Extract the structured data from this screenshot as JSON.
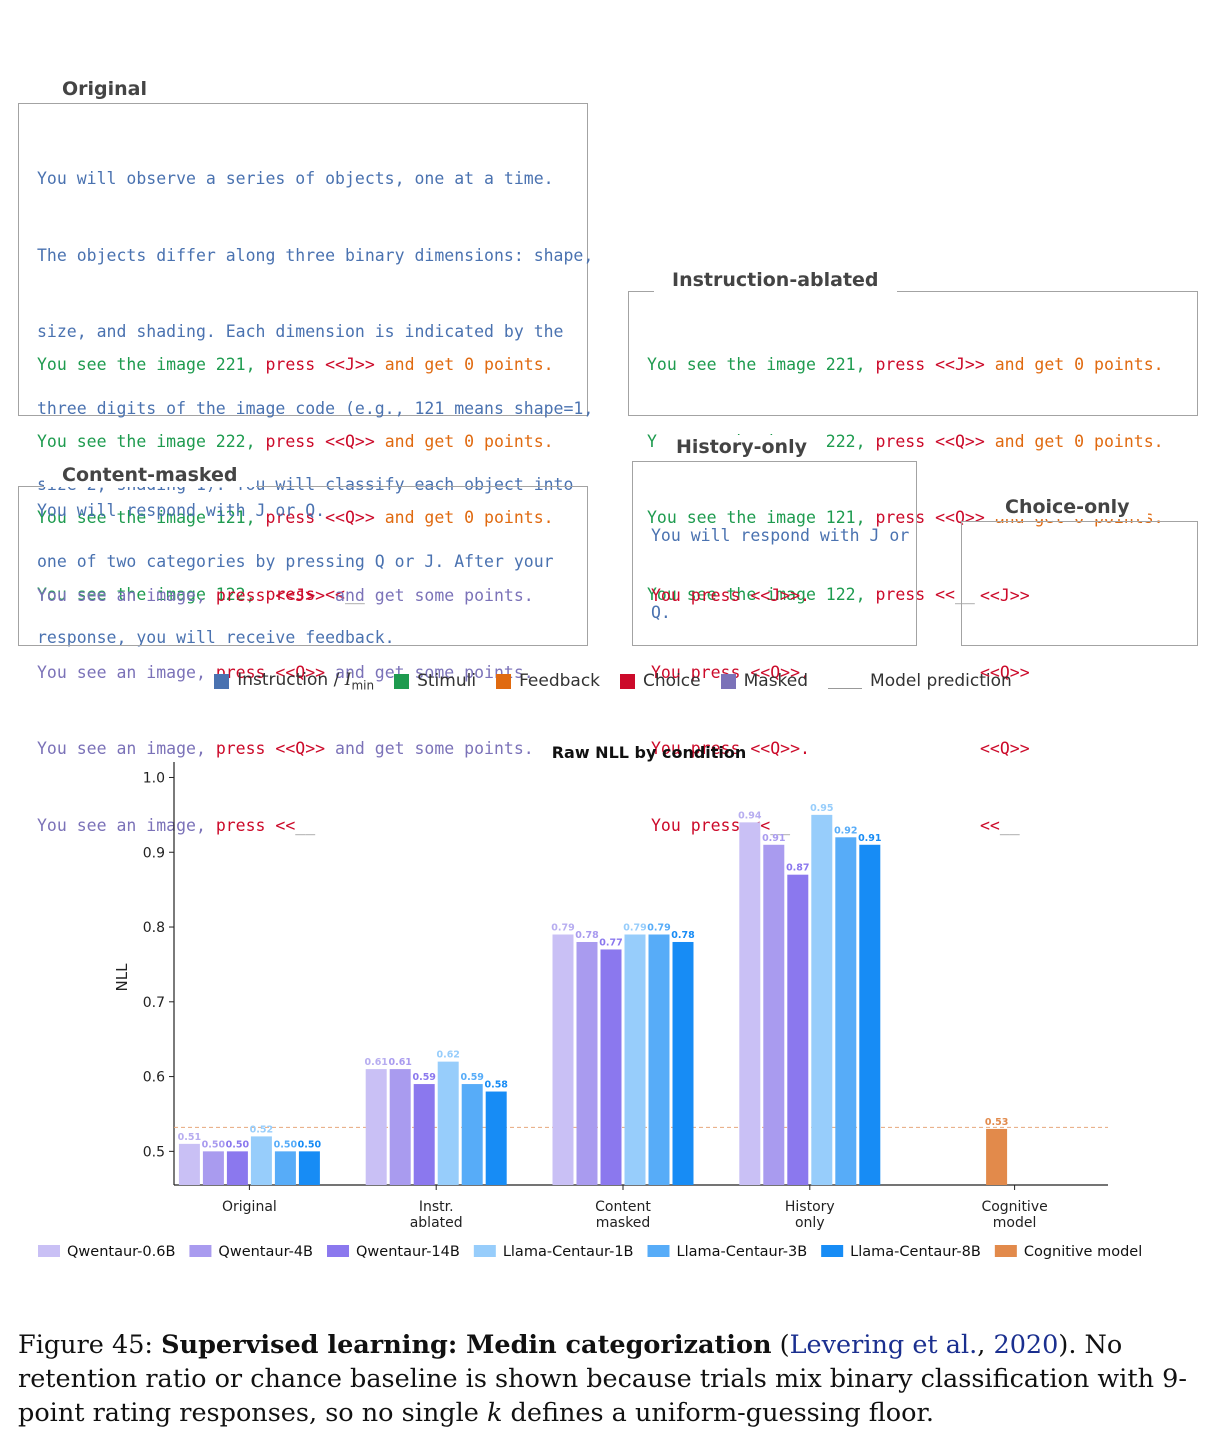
{
  "panels": {
    "original": {
      "title": "Original",
      "instruction": [
        "You will observe a series of objects, one at a time.",
        "The objects differ along three binary dimensions: shape,",
        "size, and shading. Each dimension is indicated by the",
        "three digits of the image code (e.g., 121 means shape=1,",
        "size=2, shading=1). You will classify each object into",
        "one of two categories by pressing Q or J. After your",
        "response, you will receive feedback."
      ],
      "trials": [
        {
          "stim": "You see the image 221, ",
          "choice": "press <<J>>",
          "fb": " and get 0 points."
        },
        {
          "stim": "You see the image 222, ",
          "choice": "press <<Q>>",
          "fb": " and get 0 points."
        },
        {
          "stim": "You see the image 121, ",
          "choice": "press <<Q>>",
          "fb": " and get 0 points."
        },
        {
          "stim": "You see the image 122, ",
          "choice": "press <<",
          "fb": "__"
        }
      ]
    },
    "instruction_ablated": {
      "title": "Instruction-ablated",
      "trials": [
        {
          "stim": "You see the image 221, ",
          "choice": "press <<J>>",
          "fb": " and get 0 points."
        },
        {
          "stim": "You see the image 222, ",
          "choice": "press <<Q>>",
          "fb": " and get 0 points."
        },
        {
          "stim": "You see the image 121, ",
          "choice": "press <<Q>>",
          "fb": " and get 0 points."
        },
        {
          "stim": "You see the image 122, ",
          "choice": "press <<",
          "fb": "__"
        }
      ]
    },
    "content_masked": {
      "title": "Content-masked",
      "instruction": "You will respond with J or Q.",
      "trials": [
        {
          "stim": "You see an image, ",
          "choice": "press <<J>>",
          "fb": " and get some points."
        },
        {
          "stim": "You see an image, ",
          "choice": "press <<Q>>",
          "fb": " and get some points."
        },
        {
          "stim": "You see an image, ",
          "choice": "press <<Q>>",
          "fb": " and get some points."
        },
        {
          "stim": "You see an image, ",
          "choice": "press <<",
          "fb": "__"
        }
      ]
    },
    "history_only": {
      "title": "History-only",
      "instruction": [
        "You will respond with J or",
        "Q."
      ],
      "trials": [
        "You press <<J>>.",
        "You press <<Q>>.",
        "You press <<Q>>.",
        "You press <<"
      ],
      "blank": "__"
    },
    "choice_only": {
      "title": "Choice-only",
      "trials": [
        "<<J>>",
        "<<Q>>",
        "<<Q>>",
        "<<"
      ],
      "blank": "__"
    }
  },
  "token_legend": [
    {
      "label": "Instruction / ",
      "math": "I",
      "sub": "min",
      "color": "#4a72b0"
    },
    {
      "label": "Stimuli",
      "color": "#1e9b4f"
    },
    {
      "label": "Feedback",
      "color": "#e06a10"
    },
    {
      "label": "Choice",
      "color": "#cc0a2a"
    },
    {
      "label": "Masked",
      "color": "#7b72b8"
    },
    {
      "label": "Model prediction",
      "color": "none"
    }
  ],
  "chart_data": {
    "type": "bar",
    "title": "Raw NLL by condition",
    "ylabel": "NLL",
    "ylim": [
      0.455,
      1.01
    ],
    "yticks": [
      "0.5",
      "0.6",
      "0.7",
      "0.8",
      "0.9",
      "1.0"
    ],
    "categories": [
      "Original",
      "Instr.\nablated",
      "Content\nmasked",
      "History\nonly",
      "Cognitive\nmodel"
    ],
    "series": [
      {
        "name": "Qwentaur-0.6B",
        "color": "#c9c0f5",
        "values": [
          0.51,
          0.61,
          0.79,
          0.94,
          null
        ],
        "labels": [
          "0.51",
          "0.61",
          "0.79",
          "0.94",
          ""
        ]
      },
      {
        "name": "Qwentaur-4B",
        "color": "#a99bef",
        "values": [
          0.5,
          0.61,
          0.78,
          0.91,
          null
        ],
        "labels": [
          "0.50",
          "0.61",
          "0.78",
          "0.91",
          ""
        ]
      },
      {
        "name": "Qwentaur-14B",
        "color": "#8b78ee",
        "values": [
          0.5,
          0.59,
          0.77,
          0.87,
          null
        ],
        "labels": [
          "0.50",
          "0.59",
          "0.77",
          "0.87",
          ""
        ]
      },
      {
        "name": "Llama-Centaur-1B",
        "color": "#97cdfb",
        "values": [
          0.52,
          0.62,
          0.79,
          0.95,
          null
        ],
        "labels": [
          "0.52",
          "0.62",
          "0.79",
          "0.95",
          ""
        ]
      },
      {
        "name": "Llama-Centaur-3B",
        "color": "#57acf8",
        "values": [
          0.5,
          0.59,
          0.79,
          0.92,
          null
        ],
        "labels": [
          "0.50",
          "0.59",
          "0.79",
          "0.92",
          ""
        ]
      },
      {
        "name": "Llama-Centaur-8B",
        "color": "#178cf5",
        "values": [
          0.5,
          0.58,
          0.78,
          0.91,
          null
        ],
        "labels": [
          "0.50",
          "0.58",
          "0.78",
          "0.91",
          ""
        ]
      },
      {
        "name": "Cognitive model",
        "color": "#e28a4b",
        "values": [
          null,
          null,
          null,
          null,
          0.53
        ],
        "labels": [
          "",
          "",
          "",
          "",
          "0.53"
        ]
      }
    ],
    "reference_line": {
      "value": 0.532,
      "color": "#e8a87c",
      "style": "dashed"
    },
    "legend_position": "bottom"
  },
  "caption": {
    "figure": "Figure 45: ",
    "bold": "Supervised learning: Medin categorization",
    "open": " (",
    "cite_author": "Levering et al.",
    "sep": ", ",
    "cite_year": "2020",
    "rest": "). No retention ratio or chance baseline is shown because trials mix binary classification with 9-point rating responses, so no single ",
    "k": "k",
    "end": " defines a uniform-guessing floor."
  }
}
